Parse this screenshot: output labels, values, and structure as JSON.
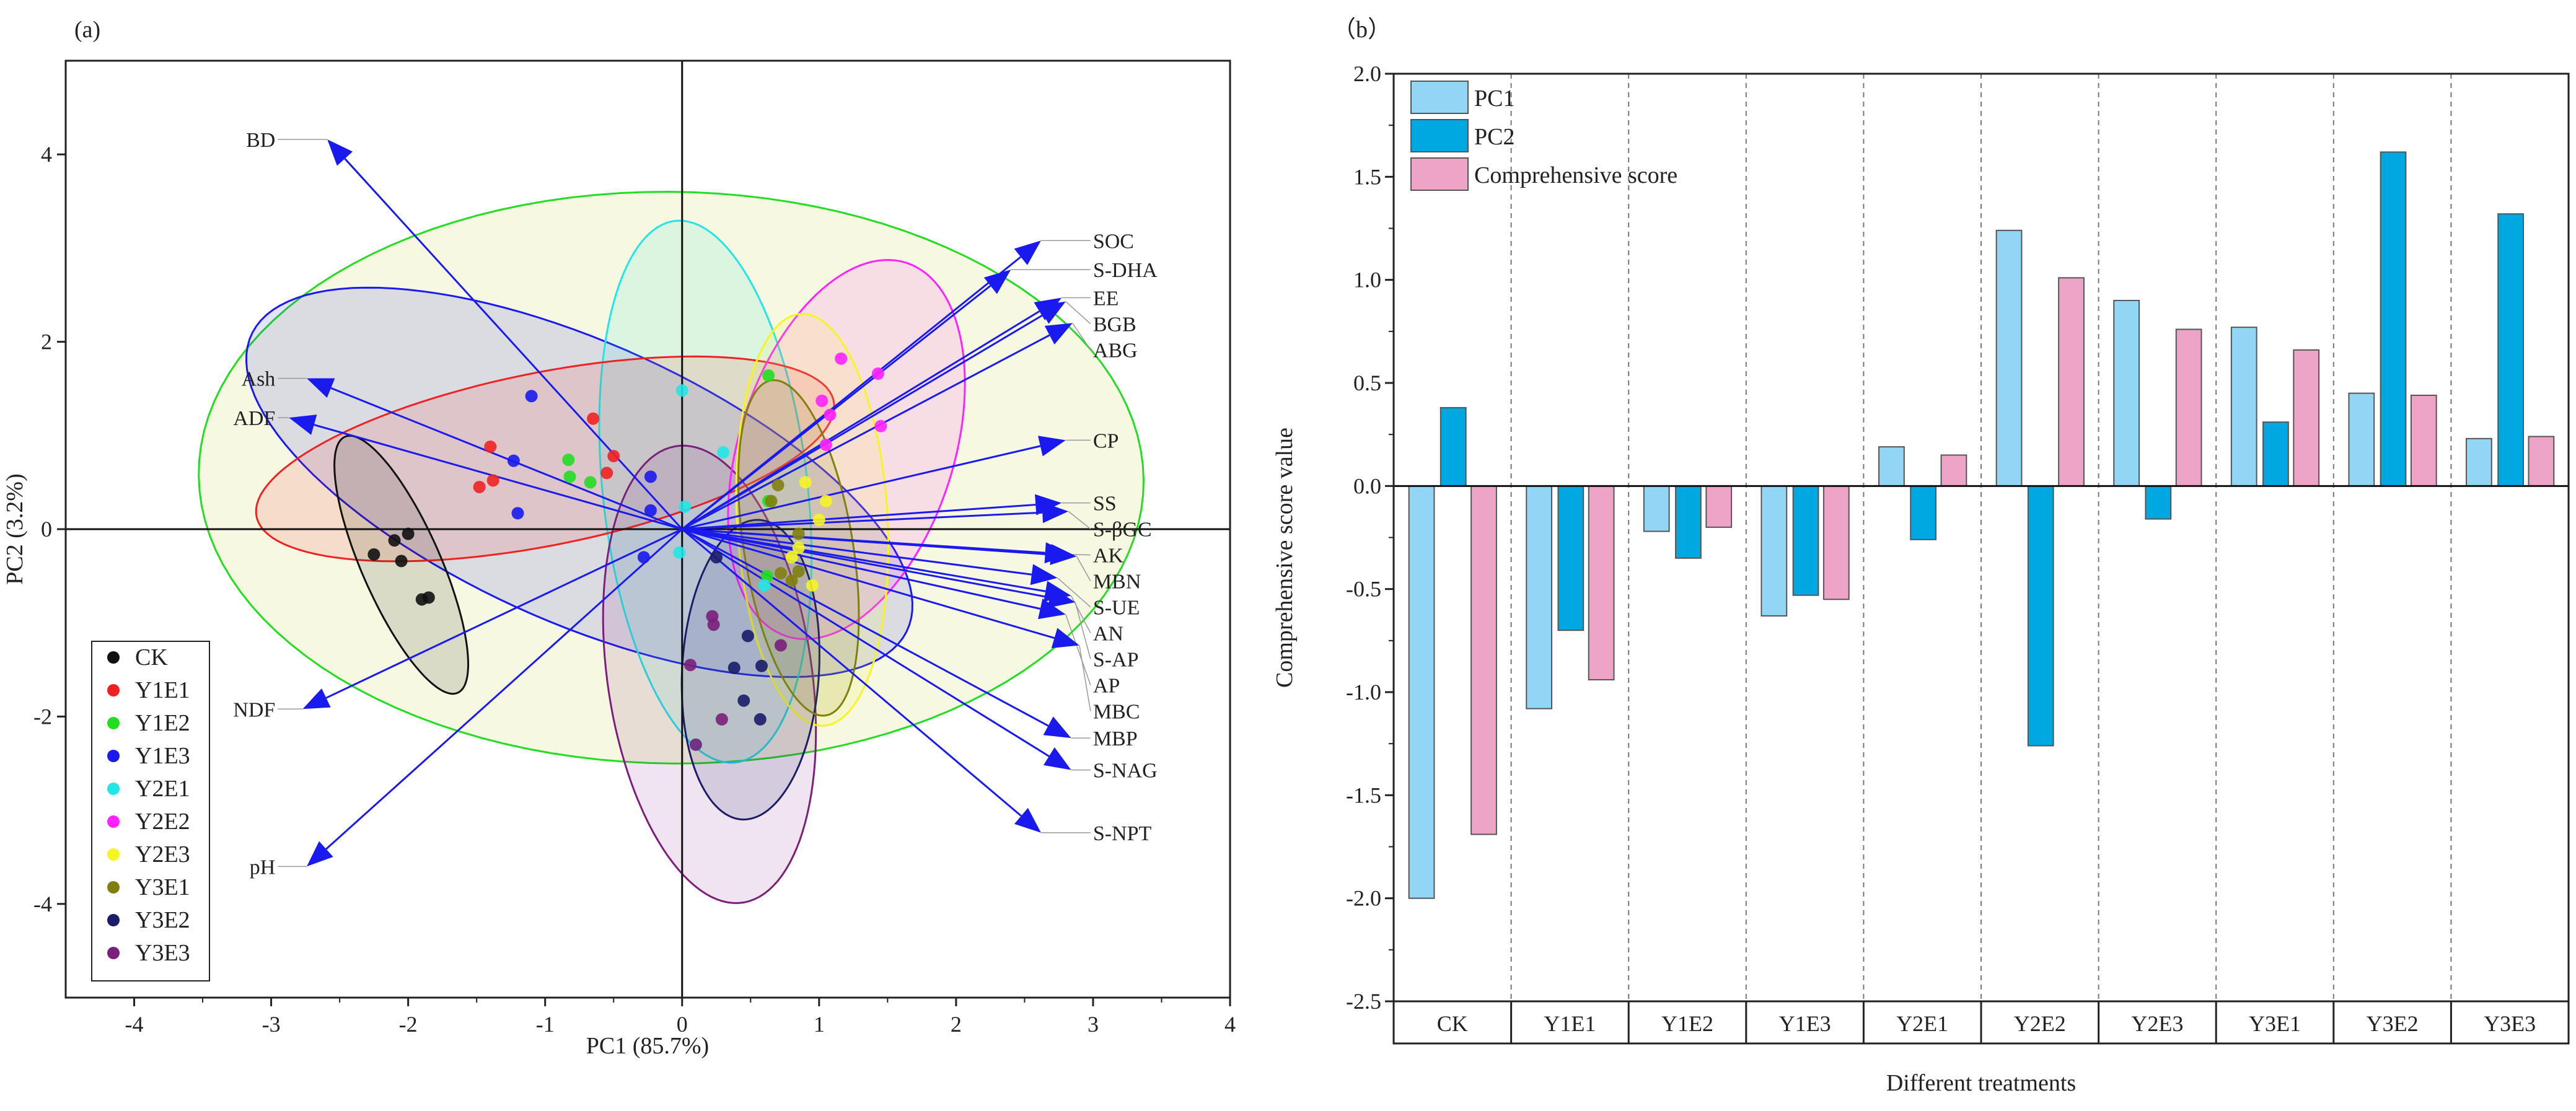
{
  "chart_data": [
    {
      "type": "scatter",
      "panel_label": "(a)",
      "title": "",
      "xlabel": "PC1 (85.7%)",
      "ylabel": "PC2 (3.2%)",
      "xlim": [
        -4.5,
        4
      ],
      "ylim": [
        -5,
        5
      ],
      "xticks": [
        "-4",
        "-3",
        "-2",
        "-1",
        "0",
        "1",
        "2",
        "3",
        "4"
      ],
      "yticks": [
        "-4",
        "-2",
        "0",
        "2",
        "4"
      ],
      "legend_position": "bottom-left",
      "groups": [
        {
          "name": "CK",
          "color": "#111111",
          "points": [
            [
              -2.25,
              -0.27
            ],
            [
              -2.1,
              -0.12
            ],
            [
              -2.0,
              -0.05
            ],
            [
              -2.05,
              -0.34
            ],
            [
              -1.9,
              -0.75
            ],
            [
              -1.85,
              -0.73
            ]
          ],
          "ellipse": {
            "center": [
              -2.05,
              -0.38
            ],
            "semi_major": 1.43,
            "semi_minor": 0.3,
            "angle_deg": -74
          }
        },
        {
          "name": "Y1E1",
          "color": "#ee2222",
          "points": [
            [
              -1.4,
              0.88
            ],
            [
              -1.38,
              0.52
            ],
            [
              -1.48,
              0.45
            ],
            [
              -0.65,
              1.18
            ],
            [
              -0.5,
              0.78
            ],
            [
              -0.55,
              0.6
            ]
          ],
          "ellipse": {
            "center": [
              -1.0,
              0.75
            ],
            "semi_major": 2.2,
            "semi_minor": 0.9,
            "angle_deg": 18
          }
        },
        {
          "name": "Y1E2",
          "color": "#22dd22",
          "points": [
            [
              -0.83,
              0.74
            ],
            [
              -0.82,
              0.56
            ],
            [
              -0.67,
              0.5
            ],
            [
              0.63,
              1.64
            ],
            [
              0.63,
              0.3
            ],
            [
              0.62,
              -0.5
            ]
          ],
          "ellipse": {
            "center": [
              -0.08,
              0.55
            ],
            "semi_major": 3.45,
            "semi_minor": 3.05,
            "angle_deg": -3
          }
        },
        {
          "name": "Y1E3",
          "color": "#1a1aee",
          "points": [
            [
              -1.1,
              1.42
            ],
            [
              -1.23,
              0.73
            ],
            [
              -1.2,
              0.17
            ],
            [
              -0.23,
              0.56
            ],
            [
              -0.23,
              0.2
            ],
            [
              -0.28,
              -0.3
            ]
          ],
          "ellipse": {
            "center": [
              -0.75,
              0.5
            ],
            "semi_major": 2.9,
            "semi_minor": 1.35,
            "angle_deg": -38
          }
        },
        {
          "name": "Y2E1",
          "color": "#22e5e5",
          "points": [
            [
              0.0,
              1.48
            ],
            [
              0.02,
              0.24
            ],
            [
              -0.02,
              -0.25
            ],
            [
              0.3,
              0.82
            ],
            [
              0.1,
              -2.3
            ],
            [
              0.6,
              -0.6
            ]
          ],
          "ellipse": {
            "center": [
              0.17,
              0.4
            ],
            "semi_major": 2.9,
            "semi_minor": 0.75,
            "angle_deg": -86
          }
        },
        {
          "name": "Y2E2",
          "color": "#ff22ff",
          "points": [
            [
              1.16,
              1.82
            ],
            [
              1.43,
              1.66
            ],
            [
              1.02,
              1.37
            ],
            [
              1.08,
              1.22
            ],
            [
              1.45,
              1.1
            ],
            [
              1.05,
              0.9
            ]
          ],
          "ellipse": {
            "center": [
              1.2,
              0.85
            ],
            "semi_major": 2.05,
            "semi_minor": 0.8,
            "angle_deg": 80
          }
        },
        {
          "name": "Y2E3",
          "color": "#f5f522",
          "points": [
            [
              0.9,
              0.5
            ],
            [
              0.85,
              -0.2
            ],
            [
              1.0,
              0.1
            ],
            [
              0.95,
              -0.6
            ],
            [
              1.05,
              0.3
            ],
            [
              0.8,
              -0.3
            ]
          ],
          "ellipse": {
            "center": [
              0.95,
              0.1
            ],
            "semi_major": 2.2,
            "semi_minor": 0.55,
            "angle_deg": 92
          }
        },
        {
          "name": "Y3E1",
          "color": "#7f7f10",
          "points": [
            [
              0.7,
              0.47
            ],
            [
              0.85,
              -0.45
            ],
            [
              0.8,
              -0.55
            ],
            [
              0.72,
              -0.47
            ],
            [
              0.65,
              0.3
            ],
            [
              0.85,
              -0.05
            ]
          ],
          "ellipse": {
            "center": [
              0.85,
              -0.2
            ],
            "semi_major": 1.8,
            "semi_minor": 0.4,
            "angle_deg": -84
          }
        },
        {
          "name": "Y3E2",
          "color": "#1c1c6a",
          "points": [
            [
              0.38,
              -1.48
            ],
            [
              0.45,
              -1.83
            ],
            [
              0.57,
              -2.03
            ],
            [
              0.48,
              -1.14
            ],
            [
              0.58,
              -1.46
            ],
            [
              0.25,
              -0.3
            ]
          ],
          "ellipse": {
            "center": [
              0.5,
              -1.5
            ],
            "semi_major": 1.6,
            "semi_minor": 0.5,
            "angle_deg": 88
          }
        },
        {
          "name": "Y3E3",
          "color": "#7a1f7a",
          "points": [
            [
              0.22,
              -0.93
            ],
            [
              0.23,
              -1.02
            ],
            [
              0.06,
              -1.45
            ],
            [
              0.72,
              -1.24
            ],
            [
              0.29,
              -2.03
            ],
            [
              0.1,
              -2.3
            ]
          ],
          "ellipse": {
            "center": [
              0.2,
              -1.55
            ],
            "semi_major": 2.45,
            "semi_minor": 0.75,
            "angle_deg": 95
          }
        }
      ],
      "loadings": [
        {
          "name": "BD",
          "x": -2.59,
          "y": 4.16
        },
        {
          "name": "Ash",
          "x": -2.74,
          "y": 1.61
        },
        {
          "name": "ADF",
          "x": -2.87,
          "y": 1.19
        },
        {
          "name": "NDF",
          "x": -2.77,
          "y": -1.92
        },
        {
          "name": "pH",
          "x": -2.74,
          "y": -3.6
        },
        {
          "name": "SOC",
          "x": 2.62,
          "y": 3.08
        },
        {
          "name": "S-DHA",
          "x": 2.4,
          "y": 2.77
        },
        {
          "name": "EE",
          "x": 2.77,
          "y": 2.47
        },
        {
          "name": "BGB",
          "x": 2.8,
          "y": 2.43
        },
        {
          "name": "ABG",
          "x": 2.85,
          "y": 2.2
        },
        {
          "name": "CP",
          "x": 2.8,
          "y": 0.95
        },
        {
          "name": "SS",
          "x": 2.77,
          "y": 0.28
        },
        {
          "name": "S-βGC",
          "x": 2.82,
          "y": 0.19
        },
        {
          "name": "AK",
          "x": 2.84,
          "y": -0.27
        },
        {
          "name": "MBN",
          "x": 2.88,
          "y": -0.29
        },
        {
          "name": "S-UE",
          "x": 2.74,
          "y": -0.52
        },
        {
          "name": "AN",
          "x": 2.84,
          "y": -0.71
        },
        {
          "name": "S-AP",
          "x": 2.87,
          "y": -0.78
        },
        {
          "name": "AP",
          "x": 2.8,
          "y": -0.91
        },
        {
          "name": "MBC",
          "x": 2.9,
          "y": -1.24
        },
        {
          "name": "MBP",
          "x": 2.84,
          "y": -2.23
        },
        {
          "name": "S-NAG",
          "x": 2.84,
          "y": -2.57
        },
        {
          "name": "S-NPT",
          "x": 2.62,
          "y": -3.24
        }
      ],
      "arrow_color": "#1a1aee"
    },
    {
      "type": "bar",
      "panel_label": "（b）",
      "title": "",
      "xlabel": "Different treatments",
      "ylabel": "Comprehensive score value",
      "ylim": [
        -2.5,
        2.0
      ],
      "yticks": [
        "-2.5",
        "-2.0",
        "-1.5",
        "-1.0",
        "-0.5",
        "0.0",
        "0.5",
        "1.0",
        "1.5",
        "2.0"
      ],
      "legend_position": "top-left",
      "categories": [
        "CK",
        "Y1E1",
        "Y1E2",
        "Y1E3",
        "Y2E1",
        "Y2E2",
        "Y2E3",
        "Y3E1",
        "Y3E2",
        "Y3E3"
      ],
      "series": [
        {
          "name": "PC1",
          "color": "#93d5f5",
          "values": [
            -2.0,
            -1.08,
            -0.22,
            -0.63,
            0.19,
            1.24,
            0.9,
            0.77,
            0.45,
            0.23
          ]
        },
        {
          "name": "PC2",
          "color": "#00a8e2",
          "values": [
            0.38,
            -0.7,
            -0.35,
            -0.53,
            -0.26,
            -1.26,
            -0.16,
            0.31,
            1.62,
            1.32
          ]
        },
        {
          "name": "Comprehensive score",
          "color": "#eea4c6",
          "values": [
            -1.69,
            -0.94,
            -0.2,
            -0.55,
            0.15,
            1.01,
            0.76,
            0.66,
            0.44,
            0.24
          ]
        }
      ]
    }
  ]
}
